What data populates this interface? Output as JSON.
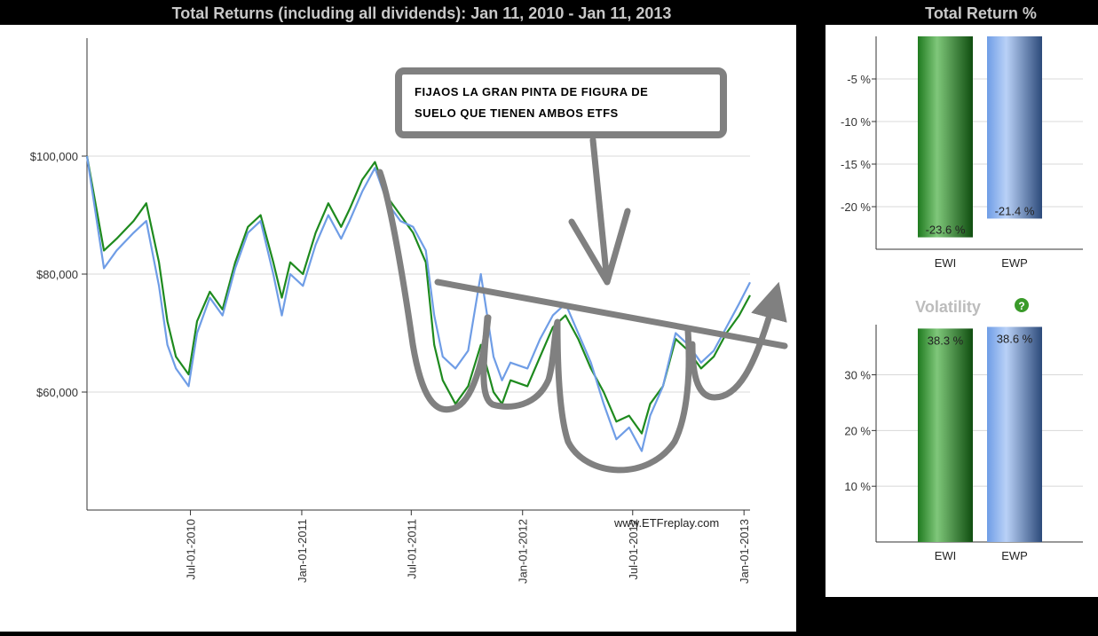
{
  "main_title": "Total Returns (including all dividends): Jan 11, 2010 - Jan 11, 2013",
  "side_title": "Total Return %",
  "watermark": "www.ETFreplay.com",
  "annotation": {
    "line1": "FIJAOS LA GRAN PINTA DE FIGURA DE",
    "line2": "SUELO QUE TIENEN AMBOS ETFS"
  },
  "colors": {
    "ewi": "#1e8a1e",
    "ewp": "#6f9de6",
    "annotation": "#808080"
  },
  "chart_data": [
    {
      "type": "line",
      "title": "Total Returns (including all dividends): Jan 11, 2010 - Jan 11, 2013",
      "x_range": [
        "2010-01-11",
        "2013-01-11"
      ],
      "ylim": [
        40000,
        120000
      ],
      "y_ticks": [
        60000,
        80000,
        100000
      ],
      "y_tick_labels": [
        "$60,000",
        "$80,000",
        "$100,000"
      ],
      "x_tick_labels": [
        "Jul-01-2010",
        "Jan-01-2011",
        "Jul-01-2011",
        "Jan-01-2012",
        "Jul-01-2012",
        "Jan-01-2013"
      ],
      "x_tick_dates": [
        "2010-07-01",
        "2011-01-01",
        "2011-07-01",
        "2012-01-01",
        "2012-07-01",
        "2013-01-01"
      ],
      "grid": true,
      "series": [
        {
          "key": "ewi",
          "points": [
            [
              "2010-01-11",
              100000
            ],
            [
              "2010-02-08",
              84000
            ],
            [
              "2010-03-01",
              86000
            ],
            [
              "2010-03-29",
              89000
            ],
            [
              "2010-04-19",
              92000
            ],
            [
              "2010-05-10",
              82000
            ],
            [
              "2010-05-24",
              72000
            ],
            [
              "2010-06-07",
              66000
            ],
            [
              "2010-06-28",
              63000
            ],
            [
              "2010-07-12",
              72000
            ],
            [
              "2010-08-02",
              77000
            ],
            [
              "2010-08-23",
              74000
            ],
            [
              "2010-09-13",
              82000
            ],
            [
              "2010-10-04",
              88000
            ],
            [
              "2010-10-25",
              90000
            ],
            [
              "2010-11-15",
              82000
            ],
            [
              "2010-11-29",
              76000
            ],
            [
              "2010-12-13",
              82000
            ],
            [
              "2011-01-03",
              80000
            ],
            [
              "2011-01-24",
              87000
            ],
            [
              "2011-02-14",
              92000
            ],
            [
              "2011-03-07",
              88000
            ],
            [
              "2011-03-21",
              91000
            ],
            [
              "2011-04-11",
              96000
            ],
            [
              "2011-05-02",
              99000
            ],
            [
              "2011-05-23",
              93000
            ],
            [
              "2011-06-13",
              90000
            ],
            [
              "2011-07-04",
              87000
            ],
            [
              "2011-07-25",
              82000
            ],
            [
              "2011-08-08",
              68000
            ],
            [
              "2011-08-22",
              62000
            ],
            [
              "2011-09-12",
              58000
            ],
            [
              "2011-10-03",
              61000
            ],
            [
              "2011-10-24",
              68000
            ],
            [
              "2011-11-14",
              60000
            ],
            [
              "2011-11-28",
              58000
            ],
            [
              "2011-12-12",
              62000
            ],
            [
              "2012-01-09",
              61000
            ],
            [
              "2012-01-30",
              66000
            ],
            [
              "2012-02-20",
              71000
            ],
            [
              "2012-03-12",
              73000
            ],
            [
              "2012-04-02",
              69000
            ],
            [
              "2012-04-23",
              64000
            ],
            [
              "2012-05-14",
              60000
            ],
            [
              "2012-06-04",
              55000
            ],
            [
              "2012-06-25",
              56000
            ],
            [
              "2012-07-16",
              53000
            ],
            [
              "2012-07-30",
              58000
            ],
            [
              "2012-08-20",
              61000
            ],
            [
              "2012-09-10",
              69000
            ],
            [
              "2012-10-01",
              67000
            ],
            [
              "2012-10-22",
              64000
            ],
            [
              "2012-11-12",
              66000
            ],
            [
              "2012-12-03",
              70000
            ],
            [
              "2012-12-24",
              73000
            ],
            [
              "2013-01-11",
              76400
            ]
          ]
        },
        {
          "key": "ewp",
          "points": [
            [
              "2010-01-11",
              100000
            ],
            [
              "2010-02-08",
              81000
            ],
            [
              "2010-03-01",
              84000
            ],
            [
              "2010-03-29",
              87000
            ],
            [
              "2010-04-19",
              89000
            ],
            [
              "2010-05-10",
              78000
            ],
            [
              "2010-05-24",
              68000
            ],
            [
              "2010-06-07",
              64000
            ],
            [
              "2010-06-28",
              61000
            ],
            [
              "2010-07-12",
              70000
            ],
            [
              "2010-08-02",
              76000
            ],
            [
              "2010-08-23",
              73000
            ],
            [
              "2010-09-13",
              81000
            ],
            [
              "2010-10-04",
              87000
            ],
            [
              "2010-10-25",
              89000
            ],
            [
              "2010-11-15",
              80000
            ],
            [
              "2010-11-29",
              73000
            ],
            [
              "2010-12-13",
              80000
            ],
            [
              "2011-01-03",
              78000
            ],
            [
              "2011-01-24",
              85000
            ],
            [
              "2011-02-14",
              90000
            ],
            [
              "2011-03-07",
              86000
            ],
            [
              "2011-03-21",
              89000
            ],
            [
              "2011-04-11",
              94000
            ],
            [
              "2011-05-02",
              98000
            ],
            [
              "2011-05-23",
              92000
            ],
            [
              "2011-06-13",
              89000
            ],
            [
              "2011-07-04",
              88000
            ],
            [
              "2011-07-25",
              84000
            ],
            [
              "2011-08-08",
              73000
            ],
            [
              "2011-08-22",
              66000
            ],
            [
              "2011-09-12",
              64000
            ],
            [
              "2011-10-03",
              67000
            ],
            [
              "2011-10-24",
              80000
            ],
            [
              "2011-11-14",
              66000
            ],
            [
              "2011-11-28",
              62000
            ],
            [
              "2011-12-12",
              65000
            ],
            [
              "2012-01-09",
              64000
            ],
            [
              "2012-01-30",
              69000
            ],
            [
              "2012-02-20",
              73000
            ],
            [
              "2012-03-12",
              75000
            ],
            [
              "2012-04-02",
              70000
            ],
            [
              "2012-04-23",
              65000
            ],
            [
              "2012-05-14",
              58000
            ],
            [
              "2012-06-04",
              52000
            ],
            [
              "2012-06-25",
              54000
            ],
            [
              "2012-07-16",
              50000
            ],
            [
              "2012-07-30",
              56000
            ],
            [
              "2012-08-20",
              61000
            ],
            [
              "2012-09-10",
              70000
            ],
            [
              "2012-10-01",
              68000
            ],
            [
              "2012-10-22",
              65000
            ],
            [
              "2012-11-12",
              67000
            ],
            [
              "2012-12-03",
              71000
            ],
            [
              "2012-12-24",
              75000
            ],
            [
              "2013-01-11",
              78600
            ]
          ]
        }
      ]
    },
    {
      "type": "bar",
      "title": "Total Return %",
      "categories": [
        "EWI",
        "EWP"
      ],
      "values": [
        -23.6,
        -21.4
      ],
      "value_labels": [
        "-23.6 %",
        "-21.4 %"
      ],
      "ylim": [
        -25,
        0
      ],
      "y_ticks": [
        -5,
        -10,
        -15,
        -20
      ],
      "y_tick_labels": [
        "-5 %",
        "-10 %",
        "-15 %",
        "-20 %"
      ],
      "grid": true
    },
    {
      "type": "bar",
      "title": "Volatility",
      "categories": [
        "EWI",
        "EWP"
      ],
      "values": [
        38.3,
        38.6
      ],
      "value_labels": [
        "38.3 %",
        "38.6 %"
      ],
      "ylim": [
        0,
        39
      ],
      "y_ticks": [
        10,
        20,
        30
      ],
      "y_tick_labels": [
        "10 %",
        "20 %",
        "30 %"
      ],
      "grid": true
    }
  ]
}
